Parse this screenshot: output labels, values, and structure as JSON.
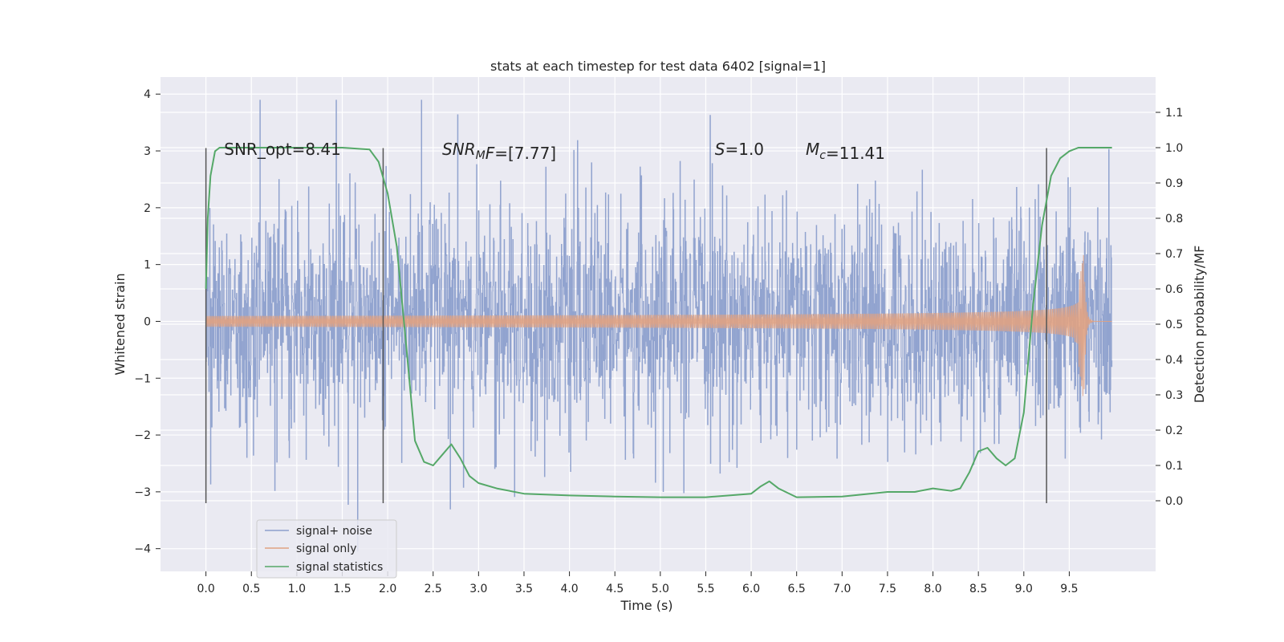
{
  "chart_data": {
    "type": "line",
    "title": "stats at each timestep for test data 6402 [signal=1]",
    "xlabel": "Time (s)",
    "ylabel_left": "Whitened strain",
    "ylabel_right": "Detection probability/MF",
    "xlim": [
      -0.5,
      10.45
    ],
    "ylim_left": [
      -4.4,
      4.3
    ],
    "ylim_right": [
      -0.2,
      1.2
    ],
    "x_ticks": [
      "0.0",
      "0.5",
      "1.0",
      "1.5",
      "2.0",
      "2.5",
      "3.0",
      "3.5",
      "4.0",
      "4.5",
      "5.0",
      "5.5",
      "6.0",
      "6.5",
      "7.0",
      "7.5",
      "8.0",
      "8.5",
      "9.0",
      "9.5"
    ],
    "y_left_ticks": [
      "−4",
      "−3",
      "−2",
      "−1",
      "0",
      "1",
      "2",
      "3",
      "4"
    ],
    "y_right_ticks": [
      "0.0",
      "0.1",
      "0.2",
      "0.3",
      "0.4",
      "0.5",
      "0.6",
      "0.7",
      "0.8",
      "0.9",
      "1.0",
      "1.1"
    ],
    "grid": true,
    "legend_position": "lower-left",
    "annotations": [
      {
        "id": "snr-opt",
        "parts": [
          {
            "t": "SNR_opt=8.41"
          }
        ],
        "x": 0.2,
        "y_right": 0.98
      },
      {
        "id": "snr-mf",
        "parts": [
          {
            "t": "SNR",
            "i": true
          },
          {
            "t": "M",
            "i": true,
            "sub": true
          },
          {
            "t": "F",
            "i": true
          },
          {
            "t": "=[7.77]"
          }
        ],
        "x": 2.6,
        "y_right": 0.98
      },
      {
        "id": "s",
        "parts": [
          {
            "t": "S",
            "i": true
          },
          {
            "t": "=1.0"
          }
        ],
        "x": 5.6,
        "y_right": 0.98
      },
      {
        "id": "mc",
        "parts": [
          {
            "t": "M",
            "i": true
          },
          {
            "t": "c",
            "i": true,
            "sub": true
          },
          {
            "t": "=11.41"
          }
        ],
        "x": 6.6,
        "y_right": 0.98
      }
    ],
    "vlines": [
      {
        "x": 0.0,
        "y_left": [
          -3.2,
          3.05
        ]
      },
      {
        "x": 1.95,
        "y_left": [
          -3.2,
          3.05
        ]
      },
      {
        "x": 9.25,
        "y_left": [
          -3.2,
          3.05
        ]
      }
    ],
    "series": [
      {
        "name": "signal+ noise",
        "color": "#8c9fcc",
        "style": "dense-noise",
        "x_range": [
          0.0,
          9.97
        ],
        "envelope_typical": [
          -2.2,
          2.3
        ],
        "spike_max": [
          -4.05,
          3.9
        ]
      },
      {
        "name": "signal only",
        "color": "#e0a282",
        "style": "chirp",
        "x_range": [
          0.0,
          9.97
        ],
        "merger_time": 9.66,
        "peak_amplitude": 1.25,
        "min_amplitude": -1.55
      },
      {
        "name": "signal statistics",
        "color": "#55a868",
        "style": "line",
        "axis": "right",
        "x": [
          0.0,
          0.02,
          0.05,
          0.1,
          0.15,
          0.2,
          0.3,
          0.5,
          1.0,
          1.5,
          1.8,
          1.9,
          2.0,
          2.1,
          2.2,
          2.3,
          2.4,
          2.5,
          2.6,
          2.7,
          2.8,
          2.9,
          3.0,
          3.2,
          3.5,
          4.0,
          4.5,
          5.0,
          5.5,
          6.0,
          6.1,
          6.2,
          6.3,
          6.5,
          7.0,
          7.5,
          7.8,
          8.0,
          8.2,
          8.3,
          8.4,
          8.5,
          8.6,
          8.7,
          8.8,
          8.9,
          9.0,
          9.1,
          9.2,
          9.3,
          9.4,
          9.5,
          9.6,
          9.8,
          9.97
        ],
        "y": [
          0.6,
          0.8,
          0.92,
          0.99,
          1.0,
          1.0,
          1.0,
          1.0,
          1.0,
          1.0,
          0.995,
          0.96,
          0.87,
          0.72,
          0.45,
          0.17,
          0.11,
          0.1,
          0.13,
          0.16,
          0.12,
          0.07,
          0.05,
          0.035,
          0.02,
          0.015,
          0.012,
          0.01,
          0.01,
          0.02,
          0.04,
          0.055,
          0.035,
          0.01,
          0.012,
          0.025,
          0.025,
          0.035,
          0.028,
          0.035,
          0.08,
          0.14,
          0.15,
          0.12,
          0.1,
          0.12,
          0.25,
          0.55,
          0.78,
          0.92,
          0.97,
          0.99,
          1.0,
          1.0,
          1.0
        ]
      }
    ]
  }
}
